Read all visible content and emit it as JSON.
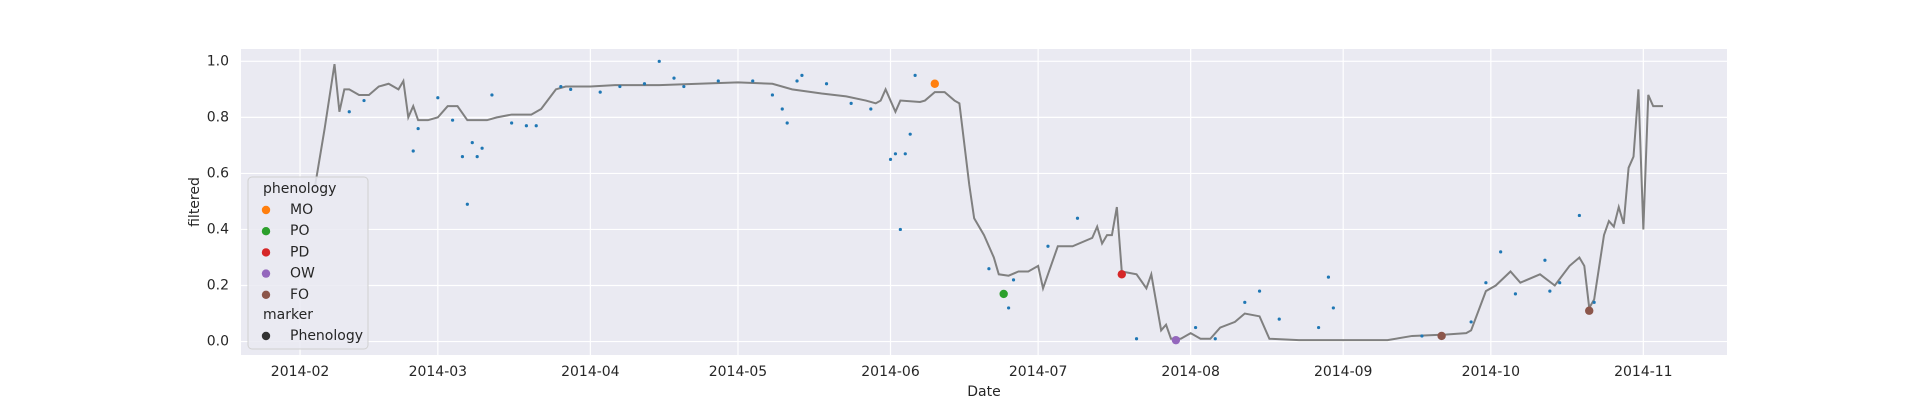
{
  "chart_data": {
    "type": "line",
    "xlabel": "Date",
    "ylabel": "filtered",
    "xlim": [
      "2014-01-20",
      "2014-11-18"
    ],
    "xticks": [
      {
        "value": "2014-02-01",
        "label": "2014-02"
      },
      {
        "value": "2014-03-01",
        "label": "2014-03"
      },
      {
        "value": "2014-04-01",
        "label": "2014-04"
      },
      {
        "value": "2014-05-01",
        "label": "2014-05"
      },
      {
        "value": "2014-06-01",
        "label": "2014-06"
      },
      {
        "value": "2014-07-01",
        "label": "2014-07"
      },
      {
        "value": "2014-08-01",
        "label": "2014-08"
      },
      {
        "value": "2014-09-01",
        "label": "2014-09"
      },
      {
        "value": "2014-10-01",
        "label": "2014-10"
      },
      {
        "value": "2014-11-01",
        "label": "2014-11"
      }
    ],
    "ylim": [
      -0.048,
      1.044
    ],
    "yticks": [
      {
        "value": 0,
        "label": "0.0"
      },
      {
        "value": 0.2,
        "label": "0.2"
      },
      {
        "value": 0.4,
        "label": "0.4"
      },
      {
        "value": 0.6,
        "label": "0.6"
      },
      {
        "value": 0.8,
        "label": "0.8"
      },
      {
        "value": 1,
        "label": "1.0"
      }
    ],
    "grid": true,
    "line": {
      "color": "#808080",
      "x": [
        "2014-02-04",
        "2014-02-06",
        "2014-02-08",
        "2014-02-09",
        "2014-02-10",
        "2014-02-11",
        "2014-02-13",
        "2014-02-15",
        "2014-02-17",
        "2014-02-19",
        "2014-02-21",
        "2014-02-22",
        "2014-02-23",
        "2014-02-24",
        "2014-02-25",
        "2014-02-27",
        "2014-03-01",
        "2014-03-03",
        "2014-03-05",
        "2014-03-07",
        "2014-03-11",
        "2014-03-13",
        "2014-03-16",
        "2014-03-20",
        "2014-03-22",
        "2014-03-25",
        "2014-03-27",
        "2014-04-01",
        "2014-04-06",
        "2014-04-15",
        "2014-05-01",
        "2014-05-08",
        "2014-05-12",
        "2014-05-16",
        "2014-05-18",
        "2014-05-23",
        "2014-05-27",
        "2014-05-29",
        "2014-05-30",
        "2014-05-31",
        "2014-06-02",
        "2014-06-03",
        "2014-06-07",
        "2014-06-08",
        "2014-06-10",
        "2014-06-12",
        "2014-06-14",
        "2014-06-15",
        "2014-06-17",
        "2014-06-18",
        "2014-06-20",
        "2014-06-22",
        "2014-06-23",
        "2014-06-25",
        "2014-06-27",
        "2014-06-29",
        "2014-07-01",
        "2014-07-02",
        "2014-07-03",
        "2014-07-05",
        "2014-07-08",
        "2014-07-12",
        "2014-07-13",
        "2014-07-14",
        "2014-07-15",
        "2014-07-16",
        "2014-07-17",
        "2014-07-18",
        "2014-07-21",
        "2014-07-23",
        "2014-07-24",
        "2014-07-26",
        "2014-07-27",
        "2014-07-28",
        "2014-07-30",
        "2014-08-01",
        "2014-08-03",
        "2014-08-05",
        "2014-08-07",
        "2014-08-10",
        "2014-08-12",
        "2014-08-15",
        "2014-08-17",
        "2014-08-23",
        "2014-09-01",
        "2014-09-10",
        "2014-09-15",
        "2014-09-22",
        "2014-09-26",
        "2014-09-27",
        "2014-09-30",
        "2014-10-02",
        "2014-10-05",
        "2014-10-07",
        "2014-10-11",
        "2014-10-14",
        "2014-10-17",
        "2014-10-19",
        "2014-10-20",
        "2014-10-21",
        "2014-10-22",
        "2014-10-24",
        "2014-10-25",
        "2014-10-26",
        "2014-10-27",
        "2014-10-28",
        "2014-10-29",
        "2014-10-30",
        "2014-10-31",
        "2014-11-01",
        "2014-11-02",
        "2014-11-03",
        "2014-11-05"
      ],
      "values": [
        0.55,
        0.76,
        0.99,
        0.82,
        0.9,
        0.9,
        0.88,
        0.88,
        0.91,
        0.92,
        0.9,
        0.93,
        0.8,
        0.84,
        0.79,
        0.79,
        0.8,
        0.84,
        0.84,
        0.79,
        0.79,
        0.8,
        0.81,
        0.81,
        0.83,
        0.9,
        0.91,
        0.91,
        0.915,
        0.915,
        0.925,
        0.92,
        0.9,
        0.89,
        0.885,
        0.875,
        0.86,
        0.85,
        0.86,
        0.9,
        0.82,
        0.86,
        0.855,
        0.86,
        0.89,
        0.89,
        0.86,
        0.85,
        0.56,
        0.44,
        0.38,
        0.3,
        0.24,
        0.235,
        0.25,
        0.25,
        0.27,
        0.19,
        0.24,
        0.34,
        0.34,
        0.37,
        0.41,
        0.35,
        0.38,
        0.38,
        0.48,
        0.25,
        0.24,
        0.19,
        0.24,
        0.04,
        0.06,
        0.01,
        0.01,
        0.03,
        0.01,
        0.01,
        0.05,
        0.07,
        0.1,
        0.09,
        0.01,
        0.005,
        0.005,
        0.005,
        0.02,
        0.025,
        0.03,
        0.04,
        0.18,
        0.2,
        0.25,
        0.21,
        0.24,
        0.2,
        0.27,
        0.3,
        0.27,
        0.12,
        0.15,
        0.38,
        0.43,
        0.41,
        0.48,
        0.42,
        0.62,
        0.66,
        0.9,
        0.4,
        0.88,
        0.84,
        0.84
      ]
    },
    "points": {
      "color": "#1f77b4",
      "x": [
        "2014-02-11",
        "2014-02-14",
        "2014-02-24",
        "2014-02-25",
        "2014-03-01",
        "2014-03-04",
        "2014-03-06",
        "2014-03-07",
        "2014-03-08",
        "2014-03-09",
        "2014-03-10",
        "2014-03-12",
        "2014-03-16",
        "2014-03-19",
        "2014-03-21",
        "2014-03-26",
        "2014-03-28",
        "2014-04-03",
        "2014-04-07",
        "2014-04-12",
        "2014-04-15",
        "2014-04-18",
        "2014-04-20",
        "2014-04-27",
        "2014-05-04",
        "2014-05-08",
        "2014-05-10",
        "2014-05-11",
        "2014-05-13",
        "2014-05-14",
        "2014-05-19",
        "2014-05-24",
        "2014-05-28",
        "2014-06-01",
        "2014-06-02",
        "2014-06-03",
        "2014-06-04",
        "2014-06-05",
        "2014-06-06",
        "2014-06-21",
        "2014-06-25",
        "2014-06-26",
        "2014-07-03",
        "2014-07-09",
        "2014-07-21",
        "2014-08-02",
        "2014-08-06",
        "2014-08-12",
        "2014-08-15",
        "2014-08-19",
        "2014-08-27",
        "2014-08-29",
        "2014-08-30",
        "2014-09-17",
        "2014-09-27",
        "2014-09-30",
        "2014-10-03",
        "2014-10-06",
        "2014-10-12",
        "2014-10-13",
        "2014-10-15",
        "2014-10-19",
        "2014-10-22"
      ],
      "values": [
        0.82,
        0.86,
        0.68,
        0.76,
        0.87,
        0.79,
        0.66,
        0.49,
        0.71,
        0.66,
        0.69,
        0.88,
        0.78,
        0.77,
        0.77,
        0.91,
        0.9,
        0.89,
        0.91,
        0.92,
        1.0,
        0.94,
        0.91,
        0.93,
        0.93,
        0.88,
        0.83,
        0.78,
        0.93,
        0.95,
        0.92,
        0.85,
        0.83,
        0.65,
        0.67,
        0.4,
        0.67,
        0.74,
        0.95,
        0.26,
        0.12,
        0.22,
        0.34,
        0.44,
        0.01,
        0.05,
        0.01,
        0.14,
        0.18,
        0.08,
        0.05,
        0.23,
        0.12,
        0.02,
        0.07,
        0.21,
        0.32,
        0.17,
        0.29,
        0.18,
        0.21,
        0.45,
        0.14
      ]
    },
    "legend_title": "phenology",
    "phenology": [
      {
        "name": "MO",
        "color": "#ff7f0e",
        "x": [
          "2014-06-10"
        ],
        "values": [
          0.92
        ]
      },
      {
        "name": "PO",
        "color": "#2ca02c",
        "x": [
          "2014-06-24"
        ],
        "values": [
          0.17
        ]
      },
      {
        "name": "PD",
        "color": "#d62728",
        "x": [
          "2014-07-18"
        ],
        "values": [
          0.24
        ]
      },
      {
        "name": "OW",
        "color": "#9467bd",
        "x": [
          "2014-07-29"
        ],
        "values": [
          0.005
        ]
      },
      {
        "name": "FO",
        "color": "#8c564b",
        "x": [
          "2014-09-21",
          "2014-10-21"
        ],
        "values": [
          0.02,
          0.11
        ]
      }
    ],
    "marker_title": "marker",
    "marker_entry": "Phenology",
    "marker_color": "#333333"
  }
}
